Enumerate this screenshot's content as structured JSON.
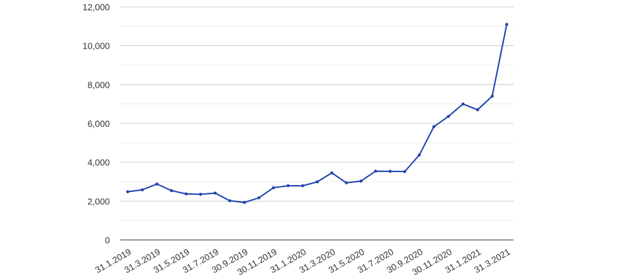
{
  "chart_data": {
    "type": "line",
    "categories": [
      "31.1.2019",
      null,
      "31.3.2019",
      null,
      "31.5.2019",
      null,
      "31.7.2019",
      null,
      "30.9.2019",
      null,
      "30.11.2019",
      null,
      "31.1.2020",
      null,
      "31.3.2020",
      null,
      "31.5.2020",
      null,
      "31.7.2020",
      null,
      "30.9.2020",
      null,
      "30.11.2020",
      null,
      "31.1.2021",
      null,
      "31.3.2021"
    ],
    "series": [
      {
        "color": "#1f44ad",
        "values": [
          2480,
          2580,
          2880,
          2540,
          2370,
          2350,
          2410,
          2020,
          1930,
          2170,
          2690,
          2790,
          2790,
          2990,
          3450,
          2940,
          3030,
          3540,
          3530,
          3520,
          4370,
          5830,
          6360,
          7000,
          6700,
          7400,
          11100
        ]
      }
    ],
    "ylim": [
      0,
      12000
    ],
    "yticks": [
      0,
      {
        "value": 2000,
        "label": "2,000"
      },
      {
        "value": 4000,
        "label": "4,000"
      },
      {
        "value": 6000,
        "label": "6,000"
      },
      {
        "value": 8000,
        "label": "8,000"
      },
      {
        "value": 10000,
        "label": "10,000"
      },
      {
        "value": 12000,
        "label": "12,000"
      }
    ],
    "yticks_minor": [
      1000,
      3000,
      5000,
      7000,
      9000,
      11000
    ],
    "grid": true
  }
}
